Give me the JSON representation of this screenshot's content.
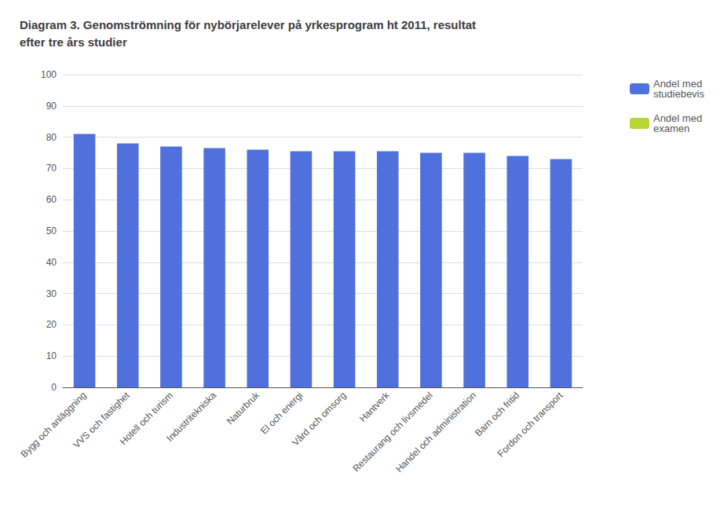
{
  "chart_data": {
    "type": "bar",
    "title": "Diagram 3. Genomströmning för nybörjarelever på yrkesprogram ht 2011, resultat\nefter tre års studier",
    "categories": [
      "Bygg och anläggning",
      "VVS och fastighet",
      "Hotell och turism",
      "Industritekniska",
      "Naturbruk",
      "El och energi",
      "Vård och omsorg",
      "Hantverk",
      "Restaurang och livsmedel",
      "Handel och administration",
      "Barn och fritid",
      "Fordon och transport"
    ],
    "series": [
      {
        "name": "Andel med\nstudiebevis",
        "values": [
          81,
          78,
          77,
          76.5,
          76,
          75.5,
          75.5,
          75.5,
          75,
          75,
          74,
          73
        ]
      },
      {
        "name": "Andel med\nexamen",
        "values": [
          null,
          null,
          null,
          null,
          null,
          null,
          null,
          null,
          null,
          null,
          null,
          null
        ]
      }
    ],
    "ylim": [
      0,
      100
    ],
    "yticks": [
      0,
      10,
      20,
      30,
      40,
      50,
      60,
      70,
      80,
      90,
      100
    ],
    "grid": true,
    "legend": "right"
  }
}
